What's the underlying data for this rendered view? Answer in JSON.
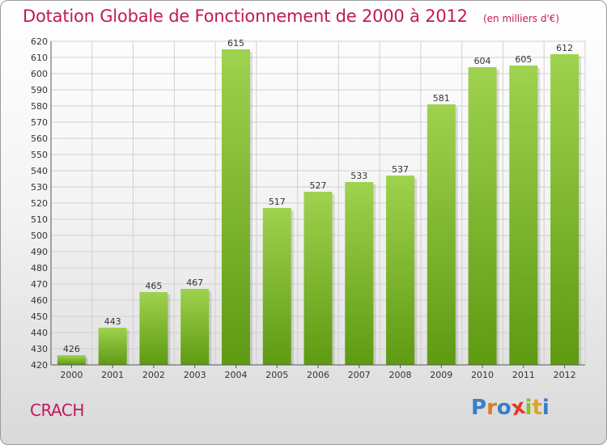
{
  "header": {
    "title": "Dotation Globale de Fonctionnement de 2000 à 2012",
    "unit": "(en milliers d'€)"
  },
  "footer": {
    "commune": "CRACH",
    "logo_letters": [
      "P",
      "r",
      "o",
      "x",
      "i",
      "t",
      "i"
    ],
    "logo_colors": [
      "#3a7dc9",
      "#e07b22",
      "#3a7dc9",
      "#e03a2f",
      "#8cbf26",
      "#e0a322",
      "#3a7dc9"
    ]
  },
  "colors": {
    "bar_light": "#9fd24e",
    "bar_dark": "#5e9a12",
    "grid": "#d0d0d0",
    "accent": "#c2185b"
  },
  "chart_data": {
    "type": "bar",
    "title": "Dotation Globale de Fonctionnement de 2000 à 2012",
    "subtitle": "(en milliers d'€)",
    "categories": [
      "2000",
      "2001",
      "2002",
      "2003",
      "2004",
      "2005",
      "2006",
      "2007",
      "2008",
      "2009",
      "2010",
      "2011",
      "2012"
    ],
    "values": [
      426,
      443,
      465,
      467,
      615,
      517,
      527,
      533,
      537,
      581,
      604,
      605,
      612
    ],
    "ylim": [
      420,
      620
    ],
    "ytick_step": 10,
    "grid": true,
    "xlabel": "",
    "ylabel": ""
  }
}
